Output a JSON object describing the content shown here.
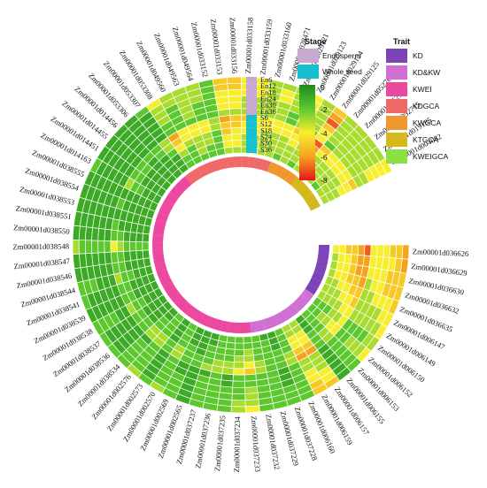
{
  "chart_data": {
    "type": "heatmap",
    "layout": "circular",
    "title": "",
    "rows": [
      "En6",
      "En12",
      "En18",
      "En24",
      "En30",
      "En36",
      "S6",
      "S12",
      "S18",
      "S24",
      "S30",
      "S36"
    ],
    "row_stage": [
      "Endosperm",
      "Endosperm",
      "Endosperm",
      "Endosperm",
      "Endosperm",
      "Endosperm",
      "Whole seed",
      "Whole seed",
      "Whole seed",
      "Whole seed",
      "Whole seed",
      "Whole seed"
    ],
    "genes": [
      "Zm00001d036626",
      "Zm00001d036629",
      "Zm00001d036630",
      "Zm00001d036632",
      "Zm00001d036635",
      "Zm00001d006147",
      "Zm00001d006149",
      "Zm00001d006150",
      "Zm00001d006152",
      "Zm00001d006153",
      "Zm00001d006155",
      "Zm00001d006157",
      "Zm00001d006159",
      "Zm00001d006160",
      "Zm00001d037228",
      "Zm00001d037229",
      "Zm00001d037232",
      "Zm00001d037233",
      "Zm00001d037234",
      "Zm00001d037235",
      "Zm00001d037236",
      "Zm00001d037237",
      "Zm00001d002565",
      "Zm00001d002569",
      "Zm00001d002570",
      "Zm00001d002573",
      "Zm00001d002576",
      "Zm00001d038534",
      "Zm00001d038536",
      "Zm00001d038537",
      "Zm00001d038538",
      "Zm00001d038539",
      "Zm00001d038541",
      "Zm00001d038544",
      "Zm00001d038546",
      "Zm00001d038547",
      "Zm00001d038548",
      "Zm00001d038550",
      "Zm00001d038551",
      "Zm00001d038553",
      "Zm00001d038554",
      "Zm00001d038555",
      "Zm00001d014163",
      "Zm00001d014451",
      "Zm00001d014455",
      "Zm00001d014456",
      "Zm00001d053306",
      "Zm00001d053307",
      "Zm00001d053308",
      "Zm00001d049560",
      "Zm00001d049563",
      "Zm00001d049564",
      "Zm00001d033152",
      "Zm00001d033153",
      "Zm00001d033156",
      "Zm00001d033158",
      "Zm00001d033159",
      "Zm00001d033160",
      "Zm00001d028471",
      "Zm00001d029121",
      "Zm00001d029123",
      "Zm00001d029124",
      "Zm00001d029125",
      "Zm00001d052709",
      "Zm00001d052713",
      "Zm00001d052715",
      "Zm00001d019185",
      "Zm00001d004082"
    ],
    "gene_traits": [
      "KD",
      "KD",
      "KD",
      "KD",
      "KD",
      "KD",
      "KD",
      "KD&KW",
      "KD&KW",
      "KD&KW",
      "KD&KW",
      "KD&KW",
      "KD&KW",
      "KD&KW",
      "KD&KW",
      "KD&KW",
      "KD&KW",
      "KWEI",
      "KWEI",
      "KWEI",
      "KWEI",
      "KWEI",
      "KWEI",
      "KWEI",
      "KWEI",
      "KWEI",
      "KWEI",
      "KWEI",
      "KWEI",
      "KWEI",
      "KWEI",
      "KWEI",
      "KWEI",
      "KWEI",
      "KWEI",
      "KWEI",
      "KWEI",
      "KWEI",
      "KWEI",
      "KWEI",
      "KWEI",
      "KWEI",
      "KWEI",
      "KWEI",
      "KWEI",
      "KWEI",
      "KWEI",
      "KDGCA",
      "KDGCA",
      "KDGCA",
      "KDGCA",
      "KDGCA",
      "KDGCA",
      "KDGCA",
      "KDGCA",
      "KDGCA",
      "KDGCA",
      "KDGCA",
      "KDGCA",
      "KWGCA",
      "KWGCA",
      "KWGCA",
      "KWGCA",
      "KTGCA",
      "KTGCA",
      "KTGCA",
      "KTGCA",
      "KTGCA",
      "KWEIGCA"
    ],
    "values": [
      [
        -6,
        -6,
        -5,
        -5,
        -5,
        -4,
        -4,
        -3,
        -4,
        -2,
        -1,
        -5,
        -5,
        -2,
        -2,
        -2,
        -2,
        -4,
        -3,
        -2,
        -2,
        -2,
        -1,
        -2,
        -3,
        -2,
        -3,
        -2,
        -2,
        -2,
        -2,
        -1,
        -2,
        -2,
        -1,
        -1,
        -3,
        -1,
        -1,
        -1,
        -1,
        -1,
        -2,
        -1,
        -1,
        -1,
        -1,
        -2,
        -4,
        -3,
        -3,
        -3,
        -2,
        -5,
        -5,
        -4,
        -4,
        -3,
        -3,
        -3,
        -4,
        -3,
        -5,
        -3,
        -3,
        -3,
        -3,
        -4
      ],
      [
        -5,
        -5,
        -5,
        -5,
        -4,
        -4,
        -3,
        -3,
        -3,
        -2,
        -1,
        -4,
        -5,
        -2,
        -2,
        -2,
        -2,
        -3,
        -3,
        -2,
        -2,
        -2,
        -1,
        -2,
        -2,
        -1,
        -2,
        -2,
        -1,
        -1,
        -2,
        -1,
        -1,
        -2,
        -1,
        -1,
        -2,
        -1,
        -1,
        -1,
        -1,
        -1,
        -1,
        -1,
        -1,
        -1,
        -1,
        -1,
        -3,
        -3,
        -3,
        -3,
        -2,
        -5,
        -5,
        -4,
        -4,
        -3,
        -4,
        -3,
        -4,
        -3,
        -6,
        -3,
        -3,
        -3,
        -3,
        -4
      ],
      [
        -5,
        -4,
        -5,
        -5,
        -4,
        -3,
        -3,
        -2,
        -3,
        -2,
        -1,
        -4,
        -4,
        -2,
        -2,
        -2,
        -2,
        -3,
        -2,
        -2,
        -2,
        -2,
        -1,
        -2,
        -2,
        -1,
        -2,
        -2,
        -1,
        -1,
        -2,
        -1,
        -1,
        -2,
        -1,
        -1,
        -2,
        -1,
        -1,
        -1,
        -1,
        -1,
        -1,
        -1,
        -1,
        -1,
        -1,
        -1,
        -3,
        -2,
        -3,
        -3,
        -2,
        -4,
        -4,
        -4,
        -4,
        -3,
        -4,
        -3,
        -4,
        -3,
        -7,
        -3,
        -3,
        -3,
        -3,
        -4
      ],
      [
        -4,
        -4,
        -4,
        -4,
        -4,
        -3,
        -3,
        -2,
        -3,
        -2,
        -1,
        -3,
        -4,
        -2,
        -1,
        -2,
        -2,
        -3,
        -2,
        -2,
        -2,
        -2,
        -1,
        -2,
        -2,
        -1,
        -2,
        -2,
        -1,
        -1,
        -2,
        -1,
        -1,
        -1,
        -1,
        -1,
        -2,
        -1,
        -1,
        -1,
        -1,
        -1,
        -1,
        -1,
        -1,
        -1,
        -1,
        -1,
        -3,
        -2,
        -3,
        -2,
        -2,
        -4,
        -4,
        -3,
        -3,
        -3,
        -3,
        -3,
        -3,
        -3,
        -5,
        -3,
        -3,
        -3,
        -3,
        -4
      ],
      [
        -4,
        -4,
        -4,
        -4,
        -3,
        -3,
        -3,
        -2,
        -2,
        -2,
        -1,
        -3,
        -3,
        -2,
        -1,
        -2,
        -2,
        -2,
        -2,
        -1,
        -2,
        -2,
        -1,
        -1,
        -2,
        -1,
        -2,
        -2,
        -1,
        -1,
        -1,
        -1,
        -1,
        -1,
        -1,
        -1,
        -2,
        -1,
        -1,
        -1,
        -1,
        -1,
        -1,
        -1,
        -1,
        -1,
        -1,
        -1,
        -2,
        -2,
        -3,
        -2,
        -2,
        -4,
        -4,
        -3,
        -3,
        -3,
        -3,
        -2,
        -3,
        -3,
        -4,
        -3,
        -3,
        -3,
        -3,
        -3
      ],
      [
        -4,
        -4,
        -4,
        -3,
        -3,
        -3,
        -3,
        -2,
        -2,
        -2,
        -1,
        -3,
        -3,
        -2,
        -1,
        -2,
        -2,
        -2,
        -2,
        -1,
        -2,
        -1,
        -1,
        -1,
        -2,
        -1,
        -2,
        -1,
        -1,
        -1,
        -1,
        -1,
        -1,
        -1,
        -1,
        -1,
        -2,
        -1,
        -1,
        -1,
        -1,
        -1,
        -1,
        -1,
        -1,
        -1,
        -1,
        -1,
        -2,
        -2,
        -2,
        -2,
        -2,
        -3,
        -3,
        -3,
        -3,
        -3,
        -3,
        -2,
        -3,
        -2,
        -4,
        -2,
        -3,
        -3,
        -3,
        -3
      ],
      [
        -7,
        -6,
        -6,
        -6,
        -5,
        -5,
        -4,
        -4,
        -4,
        -3,
        -2,
        -6,
        -6,
        -3,
        -2,
        -2,
        -3,
        -5,
        -4,
        -3,
        -3,
        -3,
        -2,
        -2,
        -3,
        -2,
        -3,
        -3,
        -2,
        -2,
        -3,
        -2,
        -2,
        -3,
        -2,
        -2,
        -4,
        -2,
        -2,
        -1,
        -2,
        -1,
        -3,
        -2,
        -2,
        -2,
        -2,
        -3,
        -6,
        -4,
        -4,
        -4,
        -3,
        -6,
        -5,
        -5,
        -4,
        -4,
        -4,
        -4,
        -5,
        -4,
        -7,
        -5,
        -4,
        -4,
        -4,
        -5
      ],
      [
        -6,
        -6,
        -6,
        -5,
        -5,
        -4,
        -4,
        -3,
        -4,
        -3,
        -2,
        -5,
        -5,
        -3,
        -2,
        -2,
        -3,
        -4,
        -3,
        -3,
        -3,
        -2,
        -2,
        -2,
        -3,
        -2,
        -3,
        -3,
        -2,
        -2,
        -2,
        -2,
        -2,
        -2,
        -2,
        -2,
        -3,
        -2,
        -1,
        -1,
        -1,
        -1,
        -2,
        -2,
        -2,
        -1,
        -2,
        -3,
        -5,
        -4,
        -4,
        -4,
        -3,
        -5,
        -5,
        -4,
        -4,
        -4,
        -4,
        -4,
        -4,
        -4,
        -6,
        -4,
        -4,
        -4,
        -4,
        -4
      ],
      [
        -5,
        -5,
        -5,
        -5,
        -4,
        -4,
        -3,
        -3,
        -3,
        -2,
        -2,
        -4,
        -4,
        -2,
        -2,
        -2,
        -2,
        -3,
        -3,
        -2,
        -2,
        -2,
        -1,
        -2,
        -2,
        -1,
        -2,
        -2,
        -1,
        -1,
        -2,
        -1,
        -1,
        -2,
        -1,
        -1,
        -2,
        -1,
        -1,
        -1,
        -1,
        -1,
        -2,
        -1,
        -1,
        -1,
        -1,
        -2,
        -4,
        -3,
        -3,
        -3,
        -2,
        -5,
        -4,
        -4,
        -4,
        -3,
        -3,
        -3,
        -4,
        -3,
        -5,
        -3,
        -3,
        -3,
        -3,
        -4
      ],
      [
        -5,
        -4,
        -4,
        -4,
        -4,
        -3,
        -3,
        -2,
        -3,
        -2,
        -1,
        -4,
        -4,
        -2,
        -1,
        -2,
        -2,
        -3,
        -2,
        -2,
        -2,
        -2,
        -1,
        -1,
        -2,
        -1,
        -2,
        -2,
        -1,
        -1,
        -1,
        -1,
        -1,
        -1,
        -1,
        -1,
        -2,
        -1,
        -1,
        -1,
        -1,
        -1,
        -1,
        -1,
        -1,
        -1,
        -1,
        -1,
        -3,
        -2,
        -3,
        -3,
        -2,
        -4,
        -4,
        -3,
        -3,
        -3,
        -3,
        -3,
        -3,
        -3,
        -4,
        -3,
        -3,
        -3,
        -3,
        -3
      ],
      [
        -4,
        -4,
        -4,
        -4,
        -3,
        -3,
        -3,
        -2,
        -2,
        -2,
        -1,
        -3,
        -3,
        -2,
        -1,
        -2,
        -2,
        -2,
        -2,
        -2,
        -2,
        -1,
        -1,
        -1,
        -2,
        -1,
        -2,
        -1,
        -1,
        -1,
        -1,
        -1,
        -1,
        -1,
        -1,
        -1,
        -2,
        -1,
        -1,
        -1,
        -1,
        -1,
        -1,
        -1,
        -1,
        -1,
        -1,
        -1,
        -2,
        -2,
        -3,
        -2,
        -2,
        -4,
        -4,
        -3,
        -3,
        -3,
        -3,
        -3,
        -3,
        -3,
        -4,
        -3,
        -3,
        -3,
        -3,
        -3
      ],
      [
        -4,
        -3,
        -3,
        -3,
        -3,
        -3,
        -3,
        -2,
        -2,
        -2,
        -1,
        -3,
        -3,
        -2,
        -1,
        -1,
        -2,
        -2,
        -2,
        -2,
        -2,
        -1,
        -1,
        -1,
        -2,
        -1,
        -2,
        -1,
        -1,
        -1,
        -1,
        -1,
        -1,
        -1,
        -1,
        -1,
        -2,
        -1,
        -1,
        -1,
        -1,
        -1,
        -1,
        -1,
        -1,
        -1,
        -1,
        -1,
        -2,
        -2,
        -2,
        -2,
        -2,
        -3,
        -3,
        -3,
        -3,
        -3,
        -3,
        -2,
        -3,
        -2,
        -3,
        -2,
        -3,
        -2,
        -3,
        -3
      ]
    ],
    "color_scale": {
      "min": -8,
      "max": 0,
      "ticks": [
        "0",
        "-2",
        "-4",
        "-6",
        "-8"
      ],
      "stops": [
        {
          "value": 0,
          "color": "#1e8c1e"
        },
        {
          "value": -2,
          "color": "#5cc82e"
        },
        {
          "value": -4,
          "color": "#f7ef2e"
        },
        {
          "value": -6,
          "color": "#f7a21e"
        },
        {
          "value": -8,
          "color": "#e6161c"
        }
      ]
    },
    "legend": {
      "stage_title": "Stage",
      "stage_items": [
        {
          "label": "Endosperm",
          "color": "#c8a8d0"
        },
        {
          "label": "Whole seed",
          "color": "#16c0d0"
        }
      ],
      "trait_title": "Trait",
      "trait_items": [
        {
          "label": "KD",
          "color": "#7c44b8"
        },
        {
          "label": "KD&KW",
          "color": "#d070d4"
        },
        {
          "label": "KWEI",
          "color": "#ec48a0"
        },
        {
          "label": "KDGCA",
          "color": "#f06868"
        },
        {
          "label": "KWGCA",
          "color": "#f09830"
        },
        {
          "label": "KTGCA",
          "color": "#d4b81c"
        },
        {
          "label": "KWEIGCA",
          "color": "#8ce040"
        }
      ]
    }
  }
}
